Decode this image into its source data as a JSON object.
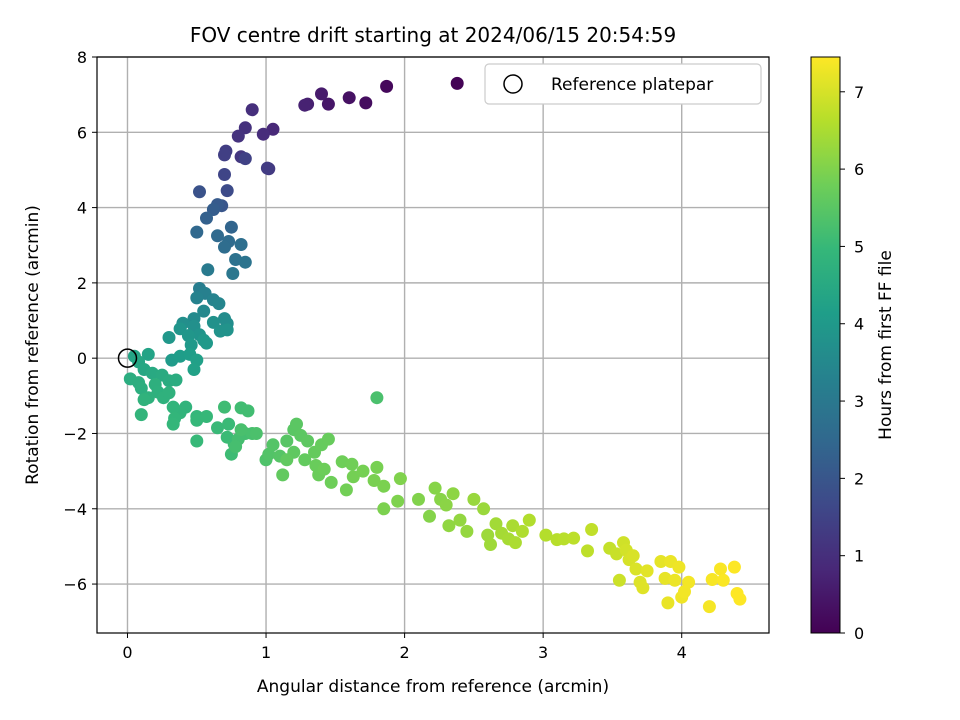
{
  "chart_data": {
    "type": "scatter",
    "title": "FOV centre drift starting at 2024/06/15 20:54:59",
    "xlabel": "Angular distance from reference (arcmin)",
    "ylabel": "Rotation from reference (arcmin)",
    "xlim": [
      -0.22,
      4.63
    ],
    "ylim": [
      -7.3,
      8
    ],
    "x_ticks": [
      "0",
      "1",
      "2",
      "3",
      "4"
    ],
    "x_tick_values": [
      0,
      1,
      2,
      3,
      4
    ],
    "y_ticks": [
      "−6",
      "−4",
      "−2",
      "0",
      "2",
      "4",
      "6",
      "8"
    ],
    "y_tick_values": [
      -6,
      -4,
      -2,
      0,
      2,
      4,
      6,
      8
    ],
    "grid": true,
    "legend": {
      "position": "top-right",
      "entries": [
        {
          "label": "Reference platepar",
          "marker": "open-circle",
          "x": 0,
          "y": 0
        }
      ]
    },
    "colorbar": {
      "label": "Hours from first FF file",
      "range": [
        0,
        7.45
      ],
      "ticks": [
        "0",
        "1",
        "2",
        "3",
        "4",
        "5",
        "6",
        "7"
      ],
      "tick_values": [
        0,
        1,
        2,
        3,
        4,
        5,
        6,
        7
      ],
      "colormap": "viridis",
      "colors": [
        "#440154",
        "#482878",
        "#3e4989",
        "#31688e",
        "#26828e",
        "#1f9e89",
        "#35b779",
        "#6ece58",
        "#b5de2b",
        "#fde725"
      ]
    },
    "points_columns": [
      "x",
      "y",
      "hours"
    ],
    "points": [
      [
        2.38,
        7.3,
        0.05
      ],
      [
        1.87,
        7.22,
        0.15
      ],
      [
        1.72,
        6.78,
        0.25
      ],
      [
        1.6,
        6.92,
        0.35
      ],
      [
        1.45,
        6.75,
        0.45
      ],
      [
        1.4,
        7.02,
        0.55
      ],
      [
        1.3,
        6.75,
        0.65
      ],
      [
        1.28,
        6.72,
        0.7
      ],
      [
        1.05,
        6.08,
        0.85
      ],
      [
        0.98,
        5.95,
        0.95
      ],
      [
        0.9,
        6.6,
        1.0
      ],
      [
        0.85,
        6.12,
        1.05
      ],
      [
        0.8,
        5.9,
        1.1
      ],
      [
        0.82,
        5.35,
        1.2
      ],
      [
        1.02,
        5.03,
        1.25
      ],
      [
        1.01,
        5.05,
        1.3
      ],
      [
        0.71,
        5.5,
        1.35
      ],
      [
        0.7,
        5.4,
        1.4
      ],
      [
        0.85,
        5.3,
        1.45
      ],
      [
        0.7,
        4.88,
        1.55
      ],
      [
        0.72,
        4.45,
        1.7
      ],
      [
        0.52,
        4.42,
        1.9
      ],
      [
        0.68,
        4.05,
        2.0
      ],
      [
        0.65,
        4.08,
        2.1
      ],
      [
        0.62,
        3.95,
        2.2
      ],
      [
        0.57,
        3.72,
        2.3
      ],
      [
        0.75,
        3.48,
        2.4
      ],
      [
        0.5,
        3.35,
        2.5
      ],
      [
        0.65,
        3.25,
        2.55
      ],
      [
        0.73,
        3.1,
        2.6
      ],
      [
        0.7,
        2.95,
        2.65
      ],
      [
        0.82,
        3.02,
        2.7
      ],
      [
        0.78,
        2.62,
        2.8
      ],
      [
        0.85,
        2.55,
        2.85
      ],
      [
        0.76,
        2.25,
        2.95
      ],
      [
        0.58,
        2.35,
        3.05
      ],
      [
        0.52,
        1.85,
        3.15
      ],
      [
        0.56,
        1.72,
        3.25
      ],
      [
        0.5,
        1.6,
        3.3
      ],
      [
        0.62,
        1.55,
        3.35
      ],
      [
        0.66,
        1.45,
        3.4
      ],
      [
        0.55,
        1.25,
        3.5
      ],
      [
        0.48,
        1.05,
        3.55
      ],
      [
        0.7,
        1.05,
        3.6
      ],
      [
        0.72,
        0.92,
        3.65
      ],
      [
        0.4,
        0.93,
        3.7
      ],
      [
        0.48,
        0.85,
        3.72
      ],
      [
        0.62,
        0.95,
        3.75
      ],
      [
        0.67,
        0.72,
        3.8
      ],
      [
        0.72,
        0.75,
        3.82
      ],
      [
        0.52,
        0.62,
        3.85
      ],
      [
        0.38,
        0.78,
        3.88
      ],
      [
        0.44,
        0.6,
        3.9
      ],
      [
        0.3,
        0.55,
        3.92
      ],
      [
        0.55,
        0.48,
        3.95
      ],
      [
        0.46,
        0.35,
        3.98
      ],
      [
        0.57,
        0.4,
        4.0
      ],
      [
        0.32,
        -0.05,
        4.05
      ],
      [
        0.38,
        0.05,
        4.1
      ],
      [
        0.45,
        0.1,
        4.15
      ],
      [
        0.5,
        -0.05,
        4.2
      ],
      [
        0.48,
        -0.3,
        4.25
      ],
      [
        0.15,
        0.1,
        4.3
      ],
      [
        0.05,
        0.05,
        4.35
      ],
      [
        0.08,
        -0.1,
        4.4
      ],
      [
        0.12,
        -0.3,
        4.45
      ],
      [
        0.18,
        -0.4,
        4.5
      ],
      [
        0.25,
        -0.45,
        4.55
      ],
      [
        0.3,
        -0.6,
        4.58
      ],
      [
        0.35,
        -0.58,
        4.6
      ],
      [
        0.02,
        -0.55,
        4.62
      ],
      [
        0.08,
        -0.65,
        4.65
      ],
      [
        0.1,
        -0.8,
        4.68
      ],
      [
        0.2,
        -0.7,
        4.7
      ],
      [
        0.22,
        -0.9,
        4.72
      ],
      [
        0.15,
        -1.05,
        4.74
      ],
      [
        0.26,
        -1.05,
        4.76
      ],
      [
        0.3,
        -0.92,
        4.78
      ],
      [
        0.12,
        -1.1,
        4.8
      ],
      [
        0.42,
        -1.3,
        4.82
      ],
      [
        0.38,
        -1.45,
        4.84
      ],
      [
        0.33,
        -1.3,
        4.86
      ],
      [
        0.1,
        -1.5,
        4.88
      ],
      [
        0.34,
        -1.6,
        4.9
      ],
      [
        0.33,
        -1.75,
        4.92
      ],
      [
        0.5,
        -1.55,
        4.94
      ],
      [
        0.5,
        -1.65,
        4.96
      ],
      [
        0.57,
        -1.55,
        4.98
      ],
      [
        0.5,
        -2.2,
        5.0
      ],
      [
        0.65,
        -1.85,
        5.02
      ],
      [
        0.73,
        -1.75,
        5.04
      ],
      [
        0.72,
        -2.1,
        5.06
      ],
      [
        0.77,
        -2.28,
        5.08
      ],
      [
        0.75,
        -2.55,
        5.1
      ],
      [
        0.7,
        -1.3,
        5.12
      ],
      [
        0.82,
        -1.32,
        5.14
      ],
      [
        0.87,
        -1.4,
        5.16
      ],
      [
        0.85,
        -2.0,
        5.18
      ],
      [
        0.8,
        -2.15,
        5.2
      ],
      [
        0.78,
        -2.35,
        5.22
      ],
      [
        0.9,
        -2.0,
        5.24
      ],
      [
        0.82,
        -1.9,
        5.26
      ],
      [
        1.8,
        -1.05,
        5.28
      ],
      [
        0.93,
        -2.0,
        5.3
      ],
      [
        1.0,
        -2.7,
        5.35
      ],
      [
        1.02,
        -2.55,
        5.4
      ],
      [
        1.05,
        -2.3,
        5.42
      ],
      [
        1.1,
        -2.6,
        5.45
      ],
      [
        1.15,
        -2.2,
        5.48
      ],
      [
        1.2,
        -1.9,
        5.5
      ],
      [
        1.22,
        -1.75,
        5.52
      ],
      [
        1.25,
        -2.05,
        5.54
      ],
      [
        1.3,
        -2.2,
        5.56
      ],
      [
        1.2,
        -2.5,
        5.58
      ],
      [
        1.15,
        -2.7,
        5.6
      ],
      [
        1.12,
        -3.1,
        5.62
      ],
      [
        1.28,
        -2.7,
        5.64
      ],
      [
        1.35,
        -2.5,
        5.66
      ],
      [
        1.4,
        -2.3,
        5.68
      ],
      [
        1.45,
        -2.15,
        5.7
      ],
      [
        1.36,
        -2.85,
        5.72
      ],
      [
        1.38,
        -3.1,
        5.74
      ],
      [
        1.42,
        -2.95,
        5.76
      ],
      [
        1.47,
        -3.3,
        5.78
      ],
      [
        1.55,
        -2.75,
        5.8
      ],
      [
        1.62,
        -2.82,
        5.82
      ],
      [
        1.58,
        -3.5,
        5.84
      ],
      [
        1.63,
        -3.15,
        5.86
      ],
      [
        1.7,
        -3.0,
        5.88
      ],
      [
        1.8,
        -2.9,
        5.9
      ],
      [
        1.78,
        -3.25,
        5.92
      ],
      [
        1.85,
        -3.4,
        5.94
      ],
      [
        1.85,
        -4.0,
        5.96
      ],
      [
        1.95,
        -3.8,
        5.98
      ],
      [
        1.97,
        -3.2,
        6.0
      ],
      [
        2.1,
        -3.75,
        6.02
      ],
      [
        2.18,
        -4.2,
        6.05
      ],
      [
        2.22,
        -3.45,
        6.08
      ],
      [
        2.26,
        -3.75,
        6.1
      ],
      [
        2.3,
        -3.9,
        6.13
      ],
      [
        2.35,
        -3.6,
        6.16
      ],
      [
        2.32,
        -4.45,
        6.19
      ],
      [
        2.4,
        -4.3,
        6.22
      ],
      [
        2.45,
        -4.6,
        6.25
      ],
      [
        2.5,
        -3.75,
        6.28
      ],
      [
        2.57,
        -4.0,
        6.31
      ],
      [
        2.6,
        -4.7,
        6.34
      ],
      [
        2.62,
        -4.95,
        6.37
      ],
      [
        2.66,
        -4.4,
        6.4
      ],
      [
        2.7,
        -4.65,
        6.43
      ],
      [
        2.75,
        -4.8,
        6.46
      ],
      [
        2.78,
        -4.45,
        6.49
      ],
      [
        2.8,
        -4.9,
        6.52
      ],
      [
        2.85,
        -4.6,
        6.55
      ],
      [
        2.9,
        -4.3,
        6.58
      ],
      [
        3.02,
        -4.7,
        6.61
      ],
      [
        3.1,
        -4.82,
        6.64
      ],
      [
        3.15,
        -4.8,
        6.67
      ],
      [
        3.22,
        -4.78,
        6.7
      ],
      [
        3.32,
        -5.12,
        6.73
      ],
      [
        3.35,
        -4.55,
        6.76
      ],
      [
        3.48,
        -5.05,
        6.8
      ],
      [
        3.53,
        -5.2,
        6.84
      ],
      [
        3.55,
        -5.9,
        6.88
      ],
      [
        3.58,
        -4.9,
        6.92
      ],
      [
        3.6,
        -5.1,
        6.96
      ],
      [
        3.62,
        -5.35,
        7.0
      ],
      [
        3.65,
        -5.25,
        7.02
      ],
      [
        3.67,
        -5.6,
        7.05
      ],
      [
        3.7,
        -5.95,
        7.08
      ],
      [
        3.72,
        -6.1,
        7.11
      ],
      [
        3.75,
        -5.65,
        7.14
      ],
      [
        3.85,
        -5.4,
        7.17
      ],
      [
        3.88,
        -5.85,
        7.2
      ],
      [
        3.9,
        -6.5,
        7.22
      ],
      [
        3.92,
        -5.4,
        7.24
      ],
      [
        3.95,
        -5.9,
        7.26
      ],
      [
        3.98,
        -5.55,
        7.28
      ],
      [
        4.0,
        -6.35,
        7.3
      ],
      [
        4.02,
        -6.2,
        7.32
      ],
      [
        4.05,
        -5.95,
        7.34
      ],
      [
        4.2,
        -6.6,
        7.36
      ],
      [
        4.22,
        -5.88,
        7.38
      ],
      [
        4.28,
        -5.6,
        7.4
      ],
      [
        4.3,
        -5.9,
        7.42
      ],
      [
        4.38,
        -5.55,
        7.44
      ],
      [
        4.4,
        -6.25,
        7.45
      ],
      [
        4.42,
        -6.4,
        7.45
      ]
    ]
  }
}
